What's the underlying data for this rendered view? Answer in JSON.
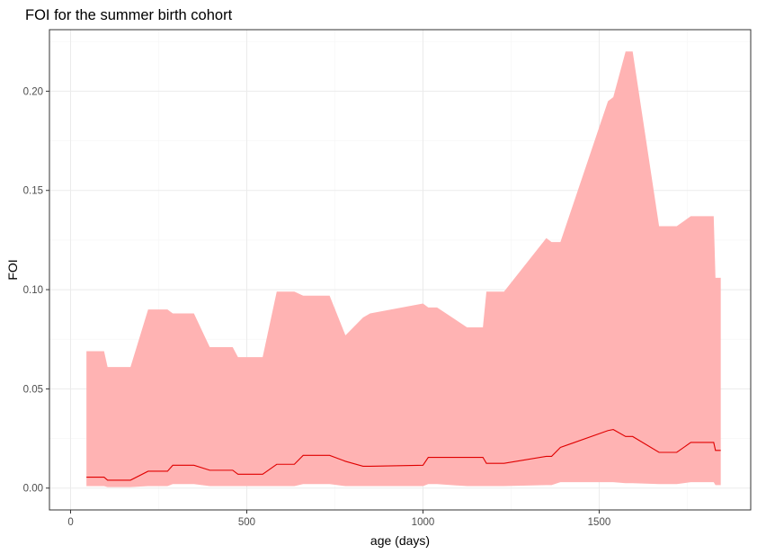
{
  "chart_data": {
    "type": "area",
    "title": "FOI for the summer birth cohort",
    "xlabel": "age (days)",
    "ylabel": "FOI",
    "xlim": [
      -60,
      1930
    ],
    "ylim": [
      -0.011,
      0.231
    ],
    "x_ticks": [
      0,
      500,
      1000,
      1500
    ],
    "x_tick_labels": [
      "0",
      "500",
      "1000",
      "1500"
    ],
    "y_ticks": [
      0.0,
      0.05,
      0.1,
      0.15,
      0.2
    ],
    "y_tick_labels": [
      "0.00",
      "0.05",
      "0.10",
      "0.15",
      "0.20"
    ],
    "grid": true,
    "legend": "none",
    "colors": {
      "ribbon": "#ffb3b3",
      "line": "#e00000",
      "grid": "#ebebeb",
      "panel_border": "#333333"
    },
    "upper": {
      "x": [
        45,
        95,
        105,
        170,
        220,
        275,
        290,
        350,
        395,
        460,
        475,
        545,
        585,
        635,
        660,
        735,
        780,
        830,
        850,
        1000,
        1015,
        1040,
        1125,
        1170,
        1180,
        1230,
        1350,
        1365,
        1390,
        1525,
        1540,
        1575,
        1595,
        1670,
        1720,
        1760,
        1775,
        1825,
        1830,
        1845
      ],
      "y": [
        0.069,
        0.069,
        0.061,
        0.061,
        0.09,
        0.09,
        0.088,
        0.088,
        0.071,
        0.071,
        0.066,
        0.066,
        0.099,
        0.099,
        0.097,
        0.097,
        0.077,
        0.086,
        0.088,
        0.093,
        0.091,
        0.091,
        0.081,
        0.081,
        0.099,
        0.099,
        0.126,
        0.124,
        0.124,
        0.195,
        0.197,
        0.22,
        0.22,
        0.132,
        0.132,
        0.137,
        0.137,
        0.137,
        0.106,
        0.106
      ]
    },
    "mean": {
      "x": [
        45,
        95,
        105,
        170,
        220,
        275,
        290,
        350,
        395,
        460,
        475,
        545,
        585,
        635,
        660,
        735,
        780,
        830,
        850,
        1000,
        1015,
        1040,
        1125,
        1170,
        1180,
        1230,
        1350,
        1365,
        1390,
        1525,
        1540,
        1575,
        1595,
        1670,
        1720,
        1760,
        1775,
        1825,
        1830,
        1845
      ],
      "y": [
        0.0055,
        0.0055,
        0.004,
        0.004,
        0.0085,
        0.0085,
        0.0115,
        0.0115,
        0.009,
        0.009,
        0.007,
        0.007,
        0.012,
        0.012,
        0.0165,
        0.0165,
        0.0135,
        0.011,
        0.011,
        0.0115,
        0.0155,
        0.0155,
        0.0155,
        0.0155,
        0.0125,
        0.0125,
        0.016,
        0.016,
        0.0205,
        0.029,
        0.0295,
        0.026,
        0.026,
        0.018,
        0.018,
        0.023,
        0.023,
        0.023,
        0.019,
        0.019
      ]
    },
    "lower": {
      "x": [
        45,
        95,
        105,
        170,
        220,
        275,
        290,
        350,
        395,
        460,
        475,
        545,
        585,
        635,
        660,
        735,
        780,
        830,
        850,
        1000,
        1015,
        1040,
        1125,
        1170,
        1180,
        1230,
        1350,
        1365,
        1390,
        1525,
        1540,
        1575,
        1595,
        1670,
        1720,
        1760,
        1775,
        1825,
        1830,
        1845
      ],
      "y": [
        0.001,
        0.001,
        0.0005,
        0.0005,
        0.001,
        0.001,
        0.002,
        0.002,
        0.001,
        0.001,
        0.001,
        0.001,
        0.001,
        0.001,
        0.002,
        0.002,
        0.001,
        0.001,
        0.001,
        0.001,
        0.002,
        0.002,
        0.001,
        0.001,
        0.001,
        0.001,
        0.0015,
        0.0015,
        0.003,
        0.003,
        0.003,
        0.0025,
        0.0025,
        0.002,
        0.002,
        0.003,
        0.003,
        0.003,
        0.0015,
        0.0015
      ]
    }
  }
}
